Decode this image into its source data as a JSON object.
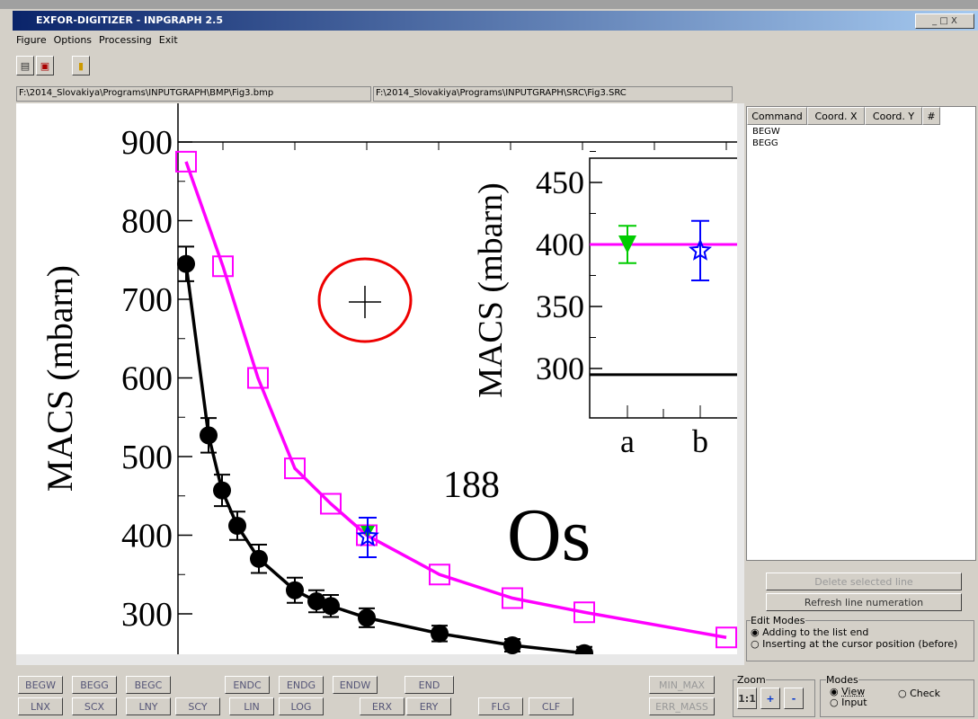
{
  "window": {
    "title": "EXFOR-DIGITIZER - INPGRAPH 2.5"
  },
  "menu": [
    "Figure",
    "Options",
    "Processing",
    "Exit"
  ],
  "paths": [
    "F:\\2014_Slovakiya\\Programs\\INPUTGRAPH\\BMP\\Fig3.bmp",
    "F:\\2014_Slovakiya\\Programs\\INPUTGRAPH\\SRC\\Fig3.SRC"
  ],
  "plot": {
    "ylabel": "MACS (mbarn)",
    "yticks": [
      300,
      400,
      500,
      600,
      700,
      800,
      900
    ],
    "black": {
      "values": [
        745,
        527,
        457,
        412,
        370,
        330,
        316,
        310,
        295,
        275,
        260,
        250
      ],
      "errors": [
        22,
        22,
        20,
        18,
        18,
        16,
        14,
        14,
        12,
        10,
        8,
        8
      ]
    },
    "magenta": {
      "values": [
        875,
        742,
        600,
        485,
        440,
        400,
        350,
        320,
        302,
        270
      ]
    },
    "annotations": [
      "188",
      "Os"
    ],
    "inset": {
      "ylabel": "MACS (mbarn)",
      "yticks": [
        300,
        350,
        400,
        450
      ],
      "categories": [
        "a",
        "b"
      ],
      "lines": [
        400,
        295
      ],
      "points": [
        {
          "value": 400,
          "error": 15
        },
        {
          "value": 395,
          "error": 24
        }
      ]
    }
  },
  "table": {
    "columns": [
      "Command",
      "Coord. X",
      "Coord. Y",
      "#"
    ],
    "rows": [
      [
        "BEGW"
      ],
      [
        "BEGG"
      ]
    ]
  },
  "side_buttons": [
    "Delete selected line",
    "Refresh line numeration"
  ],
  "edit_modes": {
    "title": "Edit Modes",
    "options": [
      "Adding to the list end",
      "Inserting at the cursor position (before)"
    ]
  },
  "bottom_buttons": [
    "BEGW",
    "BEGG",
    "BEGC",
    "ENDC",
    "ENDG",
    "ENDW",
    "END",
    "LNX",
    "SCX",
    "LNY",
    "SCY",
    "LIN",
    "LOG",
    "ERX",
    "ERY",
    "FLG",
    "CLF",
    "MIN_MAX",
    "ERR_MASS"
  ],
  "zoom": {
    "title": "Zoom",
    "buttons": [
      "1:1",
      "+",
      "-"
    ]
  },
  "modes": {
    "title": "Modes",
    "options": [
      "View",
      "Check",
      "Input"
    ]
  }
}
